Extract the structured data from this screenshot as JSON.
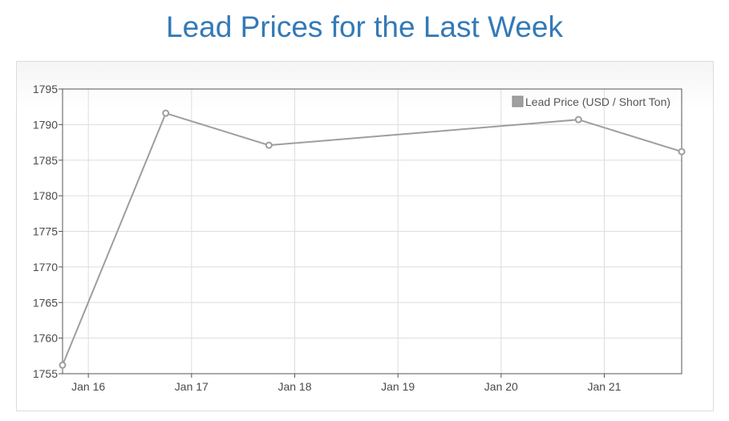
{
  "header": {
    "title": "Lead Prices for the Last Week"
  },
  "colors": {
    "title": "#337ab7",
    "series": "#9e9e9e",
    "grid": "#dddddd",
    "axis": "#555555"
  },
  "chart_data": {
    "type": "line",
    "title": "Lead Prices for the Last Week",
    "xlabel": "",
    "ylabel": "",
    "x_axis_type": "date",
    "x_ticks": [
      "Jan 16",
      "Jan 17",
      "Jan 18",
      "Jan 19",
      "Jan 20",
      "Jan 21"
    ],
    "y_ticks": [
      1795,
      1790,
      1785,
      1780,
      1775,
      1770,
      1765,
      1760,
      1755
    ],
    "xlim": [
      "2015-01-15 18:00",
      "2015-01-21 18:00"
    ],
    "ylim": [
      1755,
      1795
    ],
    "grid": true,
    "legend_position": "top-right",
    "series": [
      {
        "name": "Lead Price (USD / Short Ton)",
        "points": [
          {
            "x": "2015-01-15 18:00",
            "y": 1756.2
          },
          {
            "x": "2015-01-16 18:00",
            "y": 1791.6
          },
          {
            "x": "2015-01-17 18:00",
            "y": 1787.1
          },
          {
            "x": "2015-01-20 18:00",
            "y": 1790.7
          },
          {
            "x": "2015-01-21 18:00",
            "y": 1786.2
          }
        ]
      }
    ]
  }
}
